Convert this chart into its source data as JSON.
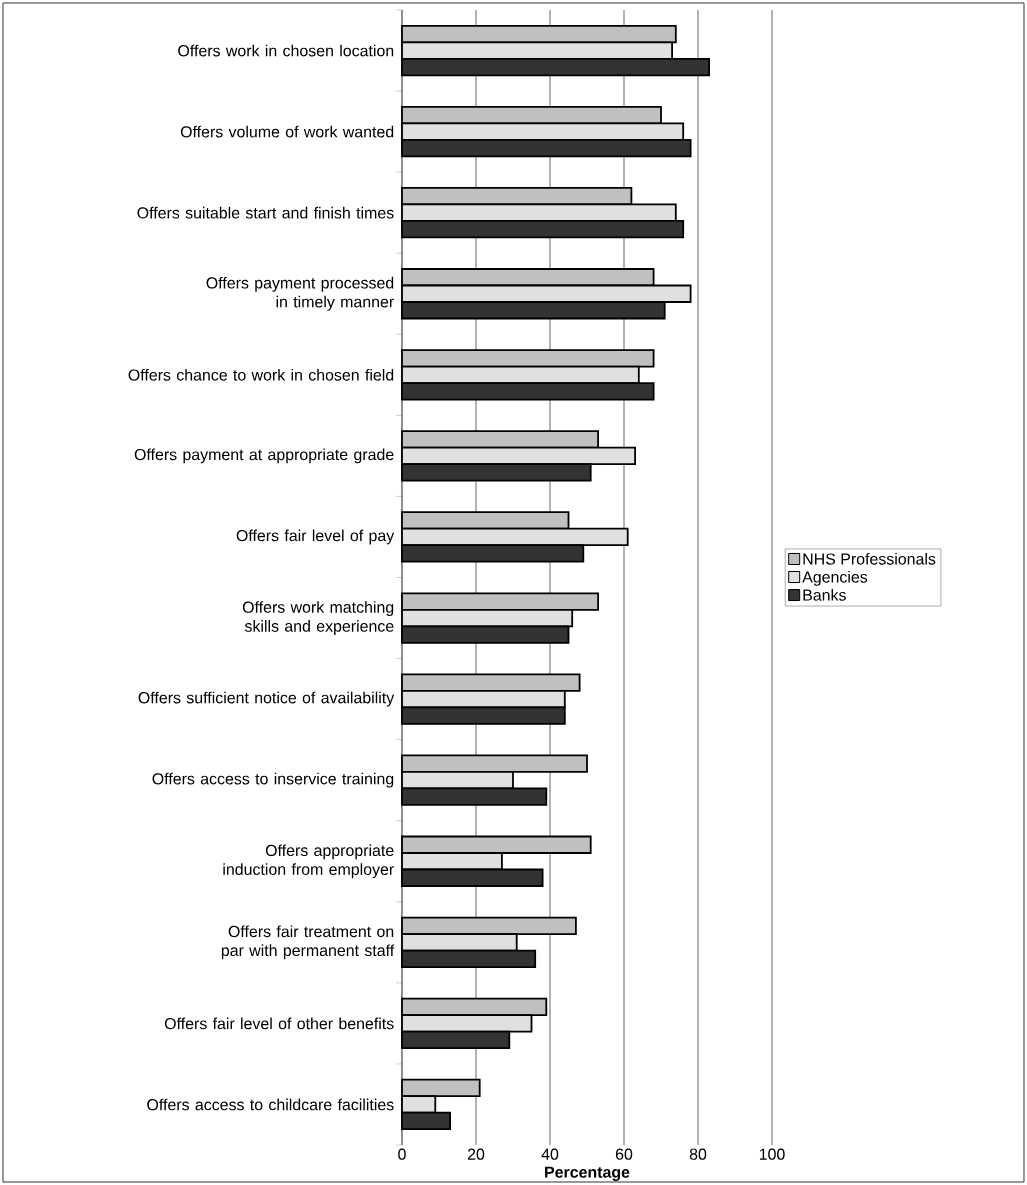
{
  "chart_data": {
    "type": "bar",
    "orientation": "horizontal",
    "xlabel": "Percentage",
    "categories": [
      "Offers work in chosen location",
      "Offers volume of work wanted",
      "Offers suitable start and finish times",
      "Offers payment processed in timely manner",
      "Offers chance to work in chosen field",
      "Offers payment at appropriate grade",
      "Offers fair level of pay",
      "Offers work matching skills and experience",
      "Offers sufficient notice of availability",
      "Offers access to inservice training",
      "Offers appropriate induction from employer",
      "Offers fair treatment on par with permanent staff",
      "Offers fair level of other benefits",
      "Offers access to childcare facilities"
    ],
    "series": [
      {
        "name": "NHS Professionals",
        "color": "#c0c0c0",
        "values": [
          74,
          70,
          62,
          68,
          68,
          53,
          45,
          53,
          48,
          50,
          51,
          47,
          39,
          21
        ]
      },
      {
        "name": "Agencies",
        "color": "#e0e0e0",
        "values": [
          73,
          76,
          74,
          78,
          64,
          63,
          61,
          46,
          44,
          30,
          27,
          31,
          35,
          9
        ]
      },
      {
        "name": "Banks",
        "color": "#333333",
        "values": [
          83,
          78,
          76,
          71,
          68,
          51,
          49,
          45,
          44,
          39,
          38,
          36,
          29,
          13
        ]
      }
    ],
    "xlim": [
      0,
      100
    ],
    "xticks": [
      0,
      20,
      40,
      60,
      80,
      100
    ],
    "grid": "x",
    "legend": "right"
  }
}
